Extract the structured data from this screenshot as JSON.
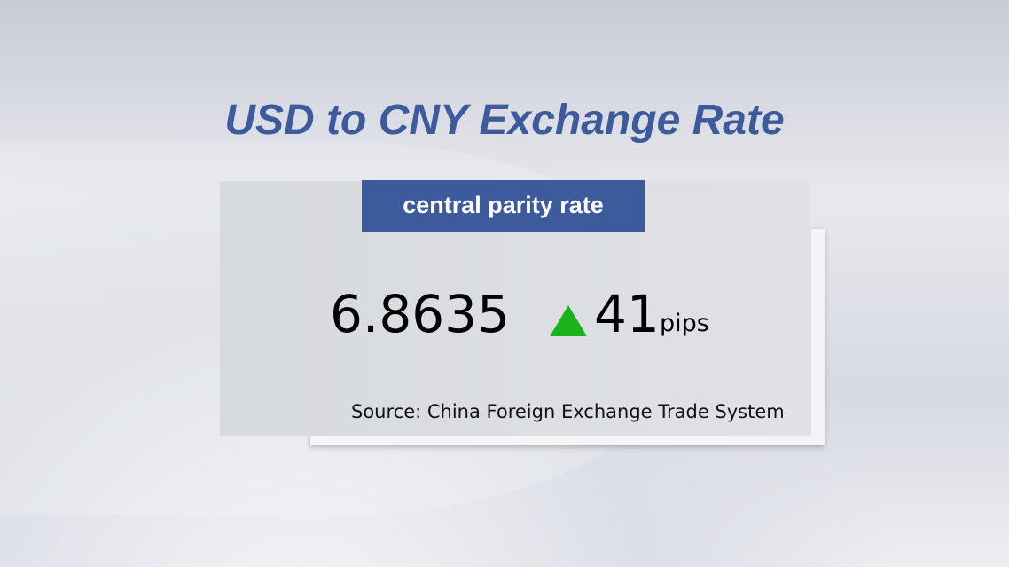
{
  "title": "USD to CNY Exchange Rate",
  "badge": "central parity rate",
  "rate": "6.8635",
  "change": {
    "direction": "up",
    "icon": "triangle-up-icon",
    "color": "#1bb31b",
    "value": "41",
    "unit": "pips"
  },
  "source": "Source: China Foreign Exchange Trade System",
  "colors": {
    "accent": "#3c5a9c"
  }
}
